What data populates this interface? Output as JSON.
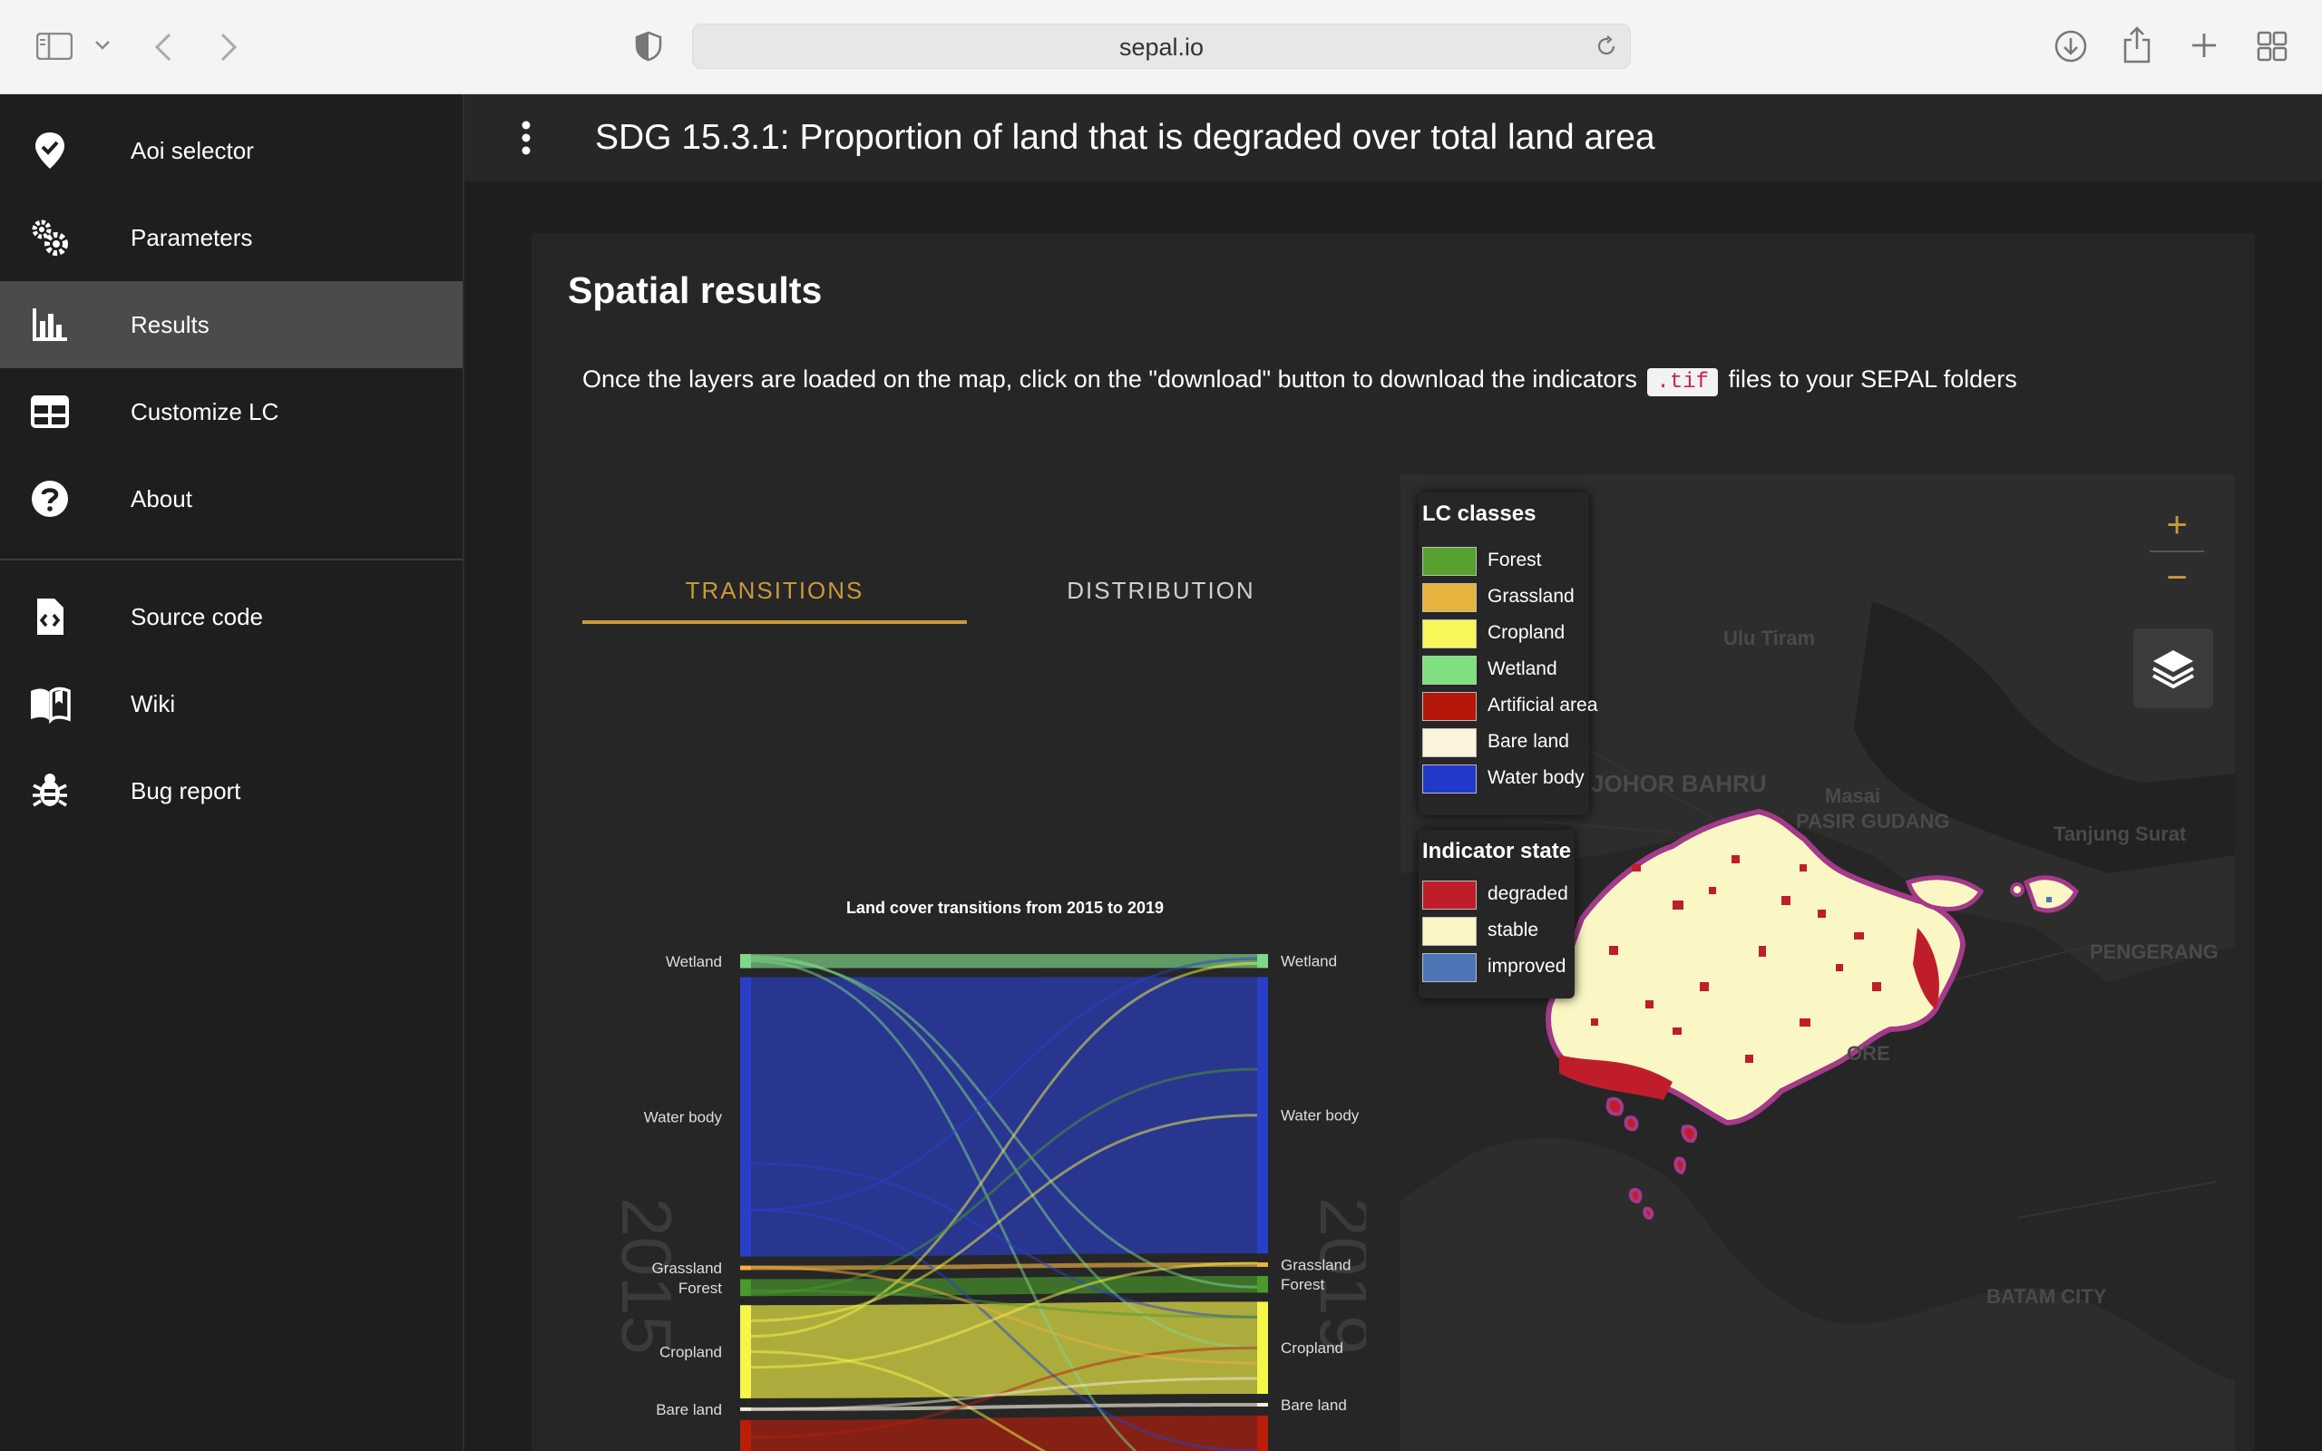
{
  "browser": {
    "url": "sepal.io"
  },
  "sidebar": {
    "items": [
      {
        "label": "Aoi selector",
        "icon": "map-marker-check-icon"
      },
      {
        "label": "Parameters",
        "icon": "gears-icon"
      },
      {
        "label": "Results",
        "icon": "bar-chart-icon",
        "active": true
      },
      {
        "label": "Customize LC",
        "icon": "table-icon"
      },
      {
        "label": "About",
        "icon": "help-circle-icon"
      }
    ],
    "links": [
      {
        "label": "Source code",
        "icon": "file-code-icon"
      },
      {
        "label": "Wiki",
        "icon": "book-open-icon"
      },
      {
        "label": "Bug report",
        "icon": "bug-icon"
      }
    ]
  },
  "appbar": {
    "title": "SDG 15.3.1: Proportion of land that is degraded over total land area"
  },
  "card": {
    "title": "Spatial results",
    "text_before": "Once the layers are loaded on the map, click on the \"download\" button to download the indicators",
    "code": ".tif",
    "text_after": "files to your SEPAL folders"
  },
  "tabs": [
    {
      "label": "TRANSITIONS",
      "active": true
    },
    {
      "label": "DISTRIBUTION",
      "active": false
    }
  ],
  "chart_data": {
    "type": "sankey",
    "title": "Land cover transitions from 2015 to 2019",
    "left_label": "2015",
    "right_label": "2019",
    "left_nodes": [
      "Wetland",
      "Water body",
      "Grassland",
      "Forest",
      "Cropland",
      "Bare land",
      "Artificial area"
    ],
    "right_nodes": [
      "Wetland",
      "Water body",
      "Grassland",
      "Forest",
      "Cropland",
      "Bare land",
      "Artificial area"
    ],
    "left_values": [
      2.5,
      49.5,
      0.8,
      3.0,
      16.5,
      0.5,
      18
    ],
    "right_values": [
      2.5,
      49.5,
      0.8,
      3.0,
      16.5,
      0.5,
      19
    ],
    "colors": {
      "Wetland": "#7fd88a",
      "Water body": "#2a3fc8",
      "Grassland": "#f0b040",
      "Forest": "#4a9a2c",
      "Cropland": "#f5f54a",
      "Bare land": "#f5f0dc",
      "Artificial area": "#b81e0a"
    }
  },
  "map": {
    "legend_lc": {
      "title": "LC classes",
      "items": [
        {
          "label": "Forest",
          "color": "#57a12f"
        },
        {
          "label": "Grassland",
          "color": "#e8b23e"
        },
        {
          "label": "Cropland",
          "color": "#f7f75a"
        },
        {
          "label": "Wetland",
          "color": "#7ee07e"
        },
        {
          "label": "Artificial area",
          "color": "#b5170b"
        },
        {
          "label": "Bare land",
          "color": "#fbf3dc"
        },
        {
          "label": "Water body",
          "color": "#2238c9"
        }
      ]
    },
    "legend_state": {
      "title": "Indicator state",
      "items": [
        {
          "label": "degraded",
          "color": "#c01d2a"
        },
        {
          "label": "stable",
          "color": "#fbf7c4"
        },
        {
          "label": "improved",
          "color": "#4e74b8"
        }
      ]
    },
    "zoom_in": "+",
    "zoom_out": "−",
    "place_labels": [
      "Ulu Tiram",
      "JOHOR BAHRU",
      "Masai",
      "PASIR GUDANG",
      "Tanjung Surat",
      "PENGERANG",
      "BATAM CITY",
      "ORE"
    ]
  }
}
